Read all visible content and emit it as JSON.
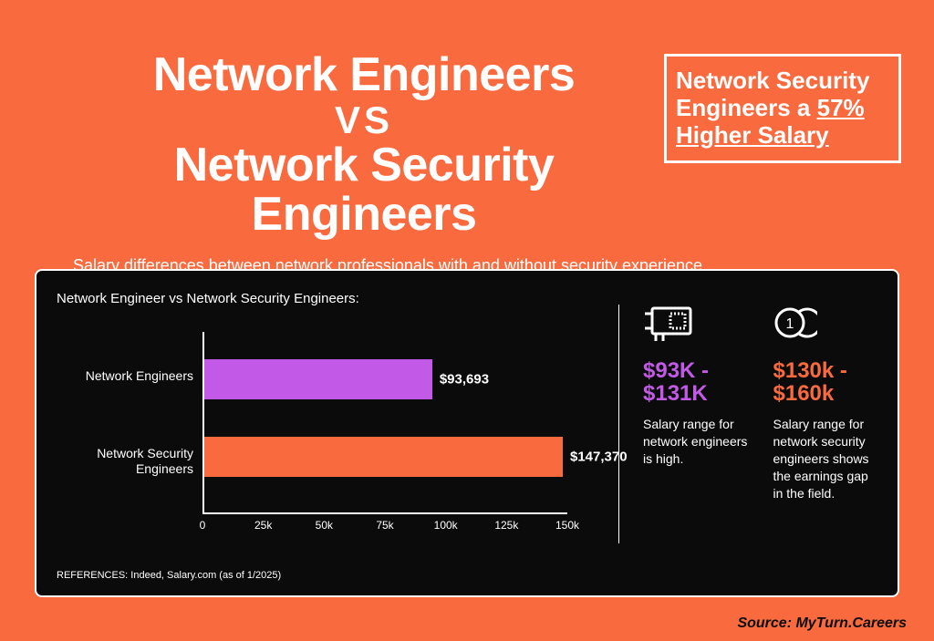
{
  "colors": {
    "background": "#f96b3f",
    "panel_bg": "#0c0b0b",
    "white": "#ffffff",
    "purple": "#c259e7",
    "orange": "#f96b3f"
  },
  "title": {
    "line1": "Network Engineers",
    "vs": "VS",
    "line3": "Network Security Engineers"
  },
  "callout": {
    "pre": "Network Security Engineers a ",
    "highlight": "57% Higher Salary"
  },
  "subtitle": "Salary differences between network professionals with and without security experience.",
  "chart": {
    "type": "bar-horizontal",
    "title": "Network Engineer vs Network Security Engineers:",
    "xmax": 150000,
    "series": [
      {
        "label": "Network Engineers",
        "value": 93693,
        "value_label": "$93,693",
        "color": "#c259e7",
        "y": 30
      },
      {
        "label": "Network Security Engineers",
        "value": 147370,
        "value_label": "$147,370",
        "color": "#f96b3f",
        "y": 115
      }
    ],
    "ticks": [
      {
        "pos": 0,
        "label": "0"
      },
      {
        "pos": 25000,
        "label": "25k"
      },
      {
        "pos": 50000,
        "label": "50k"
      },
      {
        "pos": 75000,
        "label": "75k"
      },
      {
        "pos": 100000,
        "label": "100k"
      },
      {
        "pos": 125000,
        "label": "125k"
      },
      {
        "pos": 150000,
        "label": "150k"
      }
    ],
    "references": "REFERENCES: Indeed, Salary.com (as of 1/2025)"
  },
  "stats": [
    {
      "icon": "network-card-icon",
      "range": "$93K - $131K",
      "range_color": "#c259e7",
      "desc": "Salary range for network engineers is high."
    },
    {
      "icon": "coin-icon",
      "range": "$130k - $160k",
      "range_color": "#f96b3f",
      "desc": "Salary range for network security engineers shows the earnings gap in the field."
    }
  ],
  "source": "Source: MyTurn.Careers"
}
